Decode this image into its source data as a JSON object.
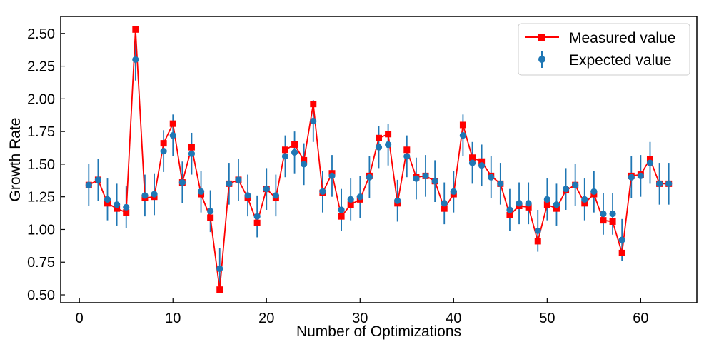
{
  "chart_data": {
    "type": "line",
    "title": "",
    "xlabel": "Number of Optimizations",
    "ylabel": "Growth Rate",
    "xlim": [
      -2,
      66
    ],
    "ylim": [
      0.44,
      2.63
    ],
    "xticks": [
      0,
      10,
      20,
      30,
      40,
      50,
      60
    ],
    "yticks": [
      0.5,
      0.75,
      1.0,
      1.25,
      1.5,
      1.75,
      2.0,
      2.25,
      2.5
    ],
    "grid": false,
    "legend_position": "top-right",
    "x": [
      1,
      2,
      3,
      4,
      5,
      6,
      7,
      8,
      9,
      10,
      11,
      12,
      13,
      14,
      15,
      16,
      17,
      18,
      19,
      20,
      21,
      22,
      23,
      24,
      25,
      26,
      27,
      28,
      29,
      30,
      31,
      32,
      33,
      34,
      35,
      36,
      37,
      38,
      39,
      40,
      41,
      42,
      43,
      44,
      45,
      46,
      47,
      48,
      49,
      50,
      51,
      52,
      53,
      54,
      55,
      56,
      57,
      58,
      59,
      60,
      61,
      62,
      63
    ],
    "series": [
      {
        "name": "Measured value",
        "kind": "line-square",
        "color": "#ff0000",
        "values": [
          1.34,
          1.38,
          1.2,
          1.16,
          1.13,
          2.53,
          1.24,
          1.25,
          1.66,
          1.81,
          1.36,
          1.63,
          1.27,
          1.09,
          0.54,
          1.35,
          1.38,
          1.24,
          1.05,
          1.31,
          1.24,
          1.61,
          1.65,
          1.53,
          1.96,
          1.28,
          1.43,
          1.1,
          1.19,
          1.23,
          1.41,
          1.7,
          1.73,
          1.2,
          1.61,
          1.4,
          1.41,
          1.37,
          1.16,
          1.27,
          1.8,
          1.55,
          1.52,
          1.41,
          1.35,
          1.11,
          1.18,
          1.17,
          0.91,
          1.19,
          1.16,
          1.3,
          1.34,
          1.2,
          1.27,
          1.07,
          1.06,
          0.82,
          1.41,
          1.42,
          1.54,
          1.35,
          1.35
        ]
      },
      {
        "name": "Expected value",
        "kind": "errorbar",
        "color": "#1f77b4",
        "values": [
          1.34,
          1.38,
          1.23,
          1.19,
          1.17,
          2.3,
          1.26,
          1.27,
          1.6,
          1.72,
          1.36,
          1.58,
          1.29,
          1.14,
          0.7,
          1.35,
          1.38,
          1.26,
          1.1,
          1.31,
          1.26,
          1.56,
          1.59,
          1.5,
          1.83,
          1.29,
          1.41,
          1.15,
          1.23,
          1.25,
          1.4,
          1.63,
          1.65,
          1.22,
          1.56,
          1.39,
          1.41,
          1.37,
          1.2,
          1.29,
          1.72,
          1.51,
          1.49,
          1.4,
          1.35,
          1.15,
          1.2,
          1.2,
          0.99,
          1.23,
          1.19,
          1.31,
          1.34,
          1.23,
          1.29,
          1.12,
          1.12,
          0.92,
          1.4,
          1.41,
          1.51,
          1.35,
          1.35
        ],
        "error": 0.16
      }
    ]
  }
}
